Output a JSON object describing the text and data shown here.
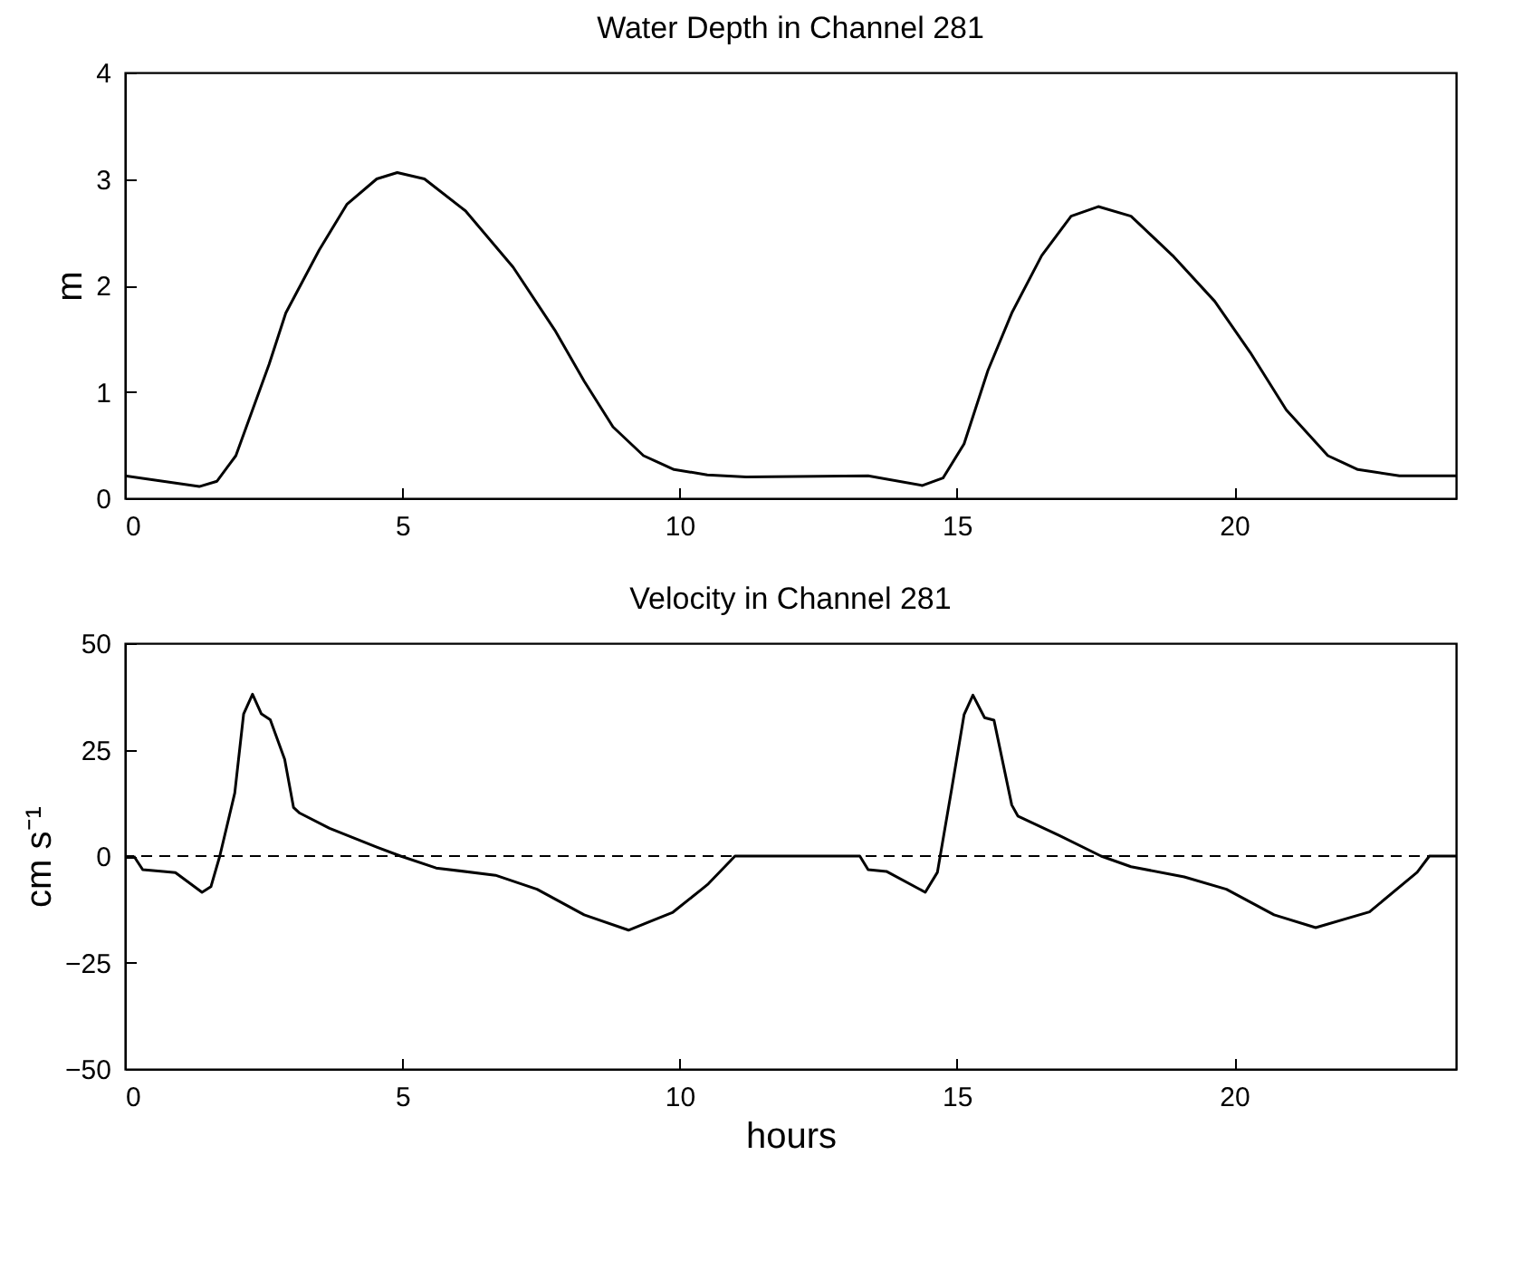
{
  "chart_data": [
    {
      "type": "line",
      "title": "Water Depth in Channel 281",
      "ylabel": "m",
      "xlim": [
        0,
        24
      ],
      "xticks": [
        0,
        5,
        10,
        15,
        20
      ],
      "ylim": [
        0,
        4
      ],
      "yticks": [
        0,
        1,
        2,
        3,
        4
      ],
      "series": [
        {
          "color": "#000000",
          "x": [
            0,
            1.34,
            1.66,
            2.0,
            2.3,
            2.6,
            2.9,
            3.5,
            4.0,
            4.54,
            4.91,
            5.4,
            6.14,
            7.0,
            7.75,
            8.28,
            8.8,
            9.35,
            9.9,
            10.5,
            11.2,
            13.4,
            14.38,
            14.75,
            15.13,
            15.56,
            15.99,
            16.53,
            17.06,
            17.55,
            18.14,
            18.89,
            19.65,
            20.29,
            20.94,
            21.69,
            22.23,
            22.98,
            24
          ],
          "values": [
            0.21,
            0.11,
            0.16,
            0.4,
            0.83,
            1.26,
            1.74,
            2.33,
            2.76,
            3.0,
            3.06,
            3.0,
            2.7,
            2.17,
            1.58,
            1.1,
            0.67,
            0.4,
            0.27,
            0.22,
            0.2,
            0.21,
            0.12,
            0.19,
            0.51,
            1.2,
            1.74,
            2.28,
            2.65,
            2.74,
            2.65,
            2.28,
            1.85,
            1.37,
            0.83,
            0.4,
            0.27,
            0.21,
            0.21
          ]
        }
      ]
    },
    {
      "type": "line",
      "title": "Velocity in Channel 281",
      "xlabel": "hours",
      "ylabel": "cm s⁻¹",
      "xlim": [
        0,
        24
      ],
      "xticks": [
        0,
        5,
        10,
        15,
        20
      ],
      "ylim": [
        -50,
        50
      ],
      "yticks": [
        -50,
        -25,
        0,
        25,
        50
      ],
      "ref_lines": [
        {
          "axis": "y",
          "value": 0,
          "color": "#000000",
          "line_style": "dashed"
        }
      ],
      "series": [
        {
          "color": "#000000",
          "x": [
            0.16,
            0.32,
            0.69,
            0.91,
            1.39,
            1.55,
            1.71,
            1.98,
            2.14,
            2.3,
            2.46,
            2.62,
            2.88,
            3.04,
            3.15,
            3.69,
            4.54,
            4.97,
            5.61,
            6.68,
            7.43,
            8.28,
            9.08,
            9.88,
            10.4,
            10.52,
            11.0,
            13.25,
            13.4,
            13.73,
            14.43,
            14.65,
            14.91,
            15.13,
            15.29,
            15.5,
            15.67,
            15.99,
            16.1,
            16.85,
            17.6,
            18.14,
            19.1,
            19.86,
            20.72,
            21.47,
            22.44,
            23.3,
            23.52,
            24
          ],
          "values": [
            0,
            -3.2,
            -3.6,
            -3.9,
            -8.5,
            -7.2,
            0,
            14.8,
            33.4,
            38,
            33.4,
            32,
            22.7,
            11.4,
            10.1,
            6.5,
            2.1,
            0,
            -2.8,
            -4.5,
            -7.8,
            -13.8,
            -17.4,
            -13.2,
            -7.8,
            -6.5,
            0,
            0,
            -3.2,
            -3.6,
            -8.5,
            -3.8,
            16,
            33.2,
            37.8,
            32.5,
            31.9,
            12,
            9.4,
            4.8,
            0,
            -2.5,
            -4.9,
            -7.8,
            -13.8,
            -16.8,
            -13.1,
            -3.8,
            0,
            0
          ]
        }
      ]
    }
  ]
}
